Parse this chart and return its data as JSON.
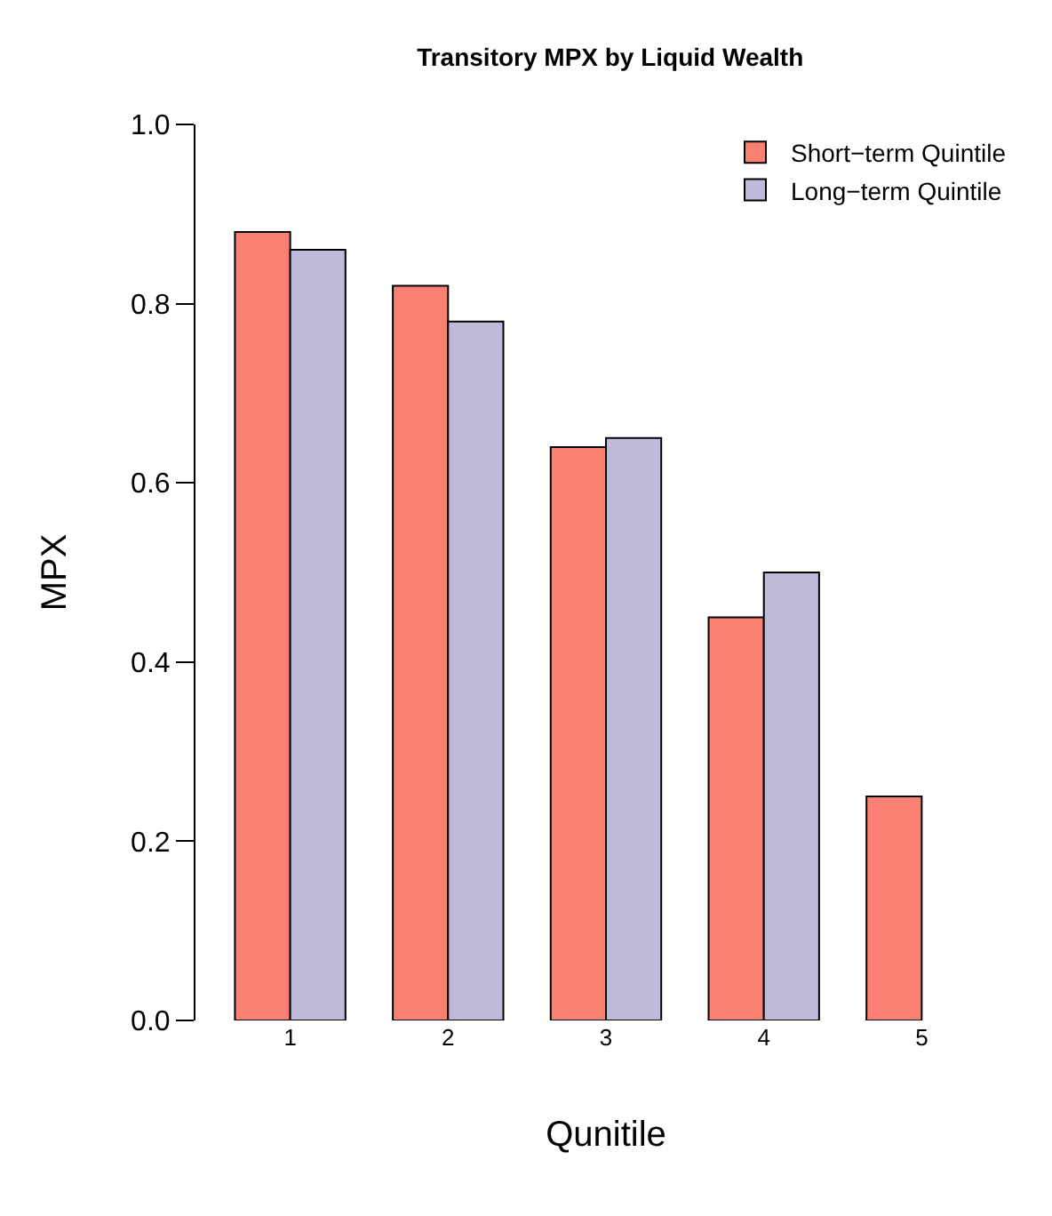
{
  "chart_data": {
    "type": "bar",
    "title": "Transitory MPX by Liquid Wealth",
    "xlabel": "Qunitile",
    "ylabel": "MPX",
    "categories": [
      "1",
      "2",
      "3",
      "4",
      "5"
    ],
    "series": [
      {
        "name": "Short−term Quintile",
        "color": "#fa8072",
        "values": [
          0.88,
          0.82,
          0.64,
          0.45,
          0.25
        ]
      },
      {
        "name": "Long−term Quintile",
        "color": "#bebada",
        "values": [
          0.86,
          0.78,
          0.65,
          0.5,
          null
        ]
      }
    ],
    "ylim": [
      0,
      1
    ],
    "yticks": [
      {
        "value": 0,
        "label": "0.0"
      },
      0.2,
      0.4,
      0.6,
      0.8,
      {
        "value": 1,
        "label": "1.0"
      }
    ],
    "legend": "top right"
  }
}
